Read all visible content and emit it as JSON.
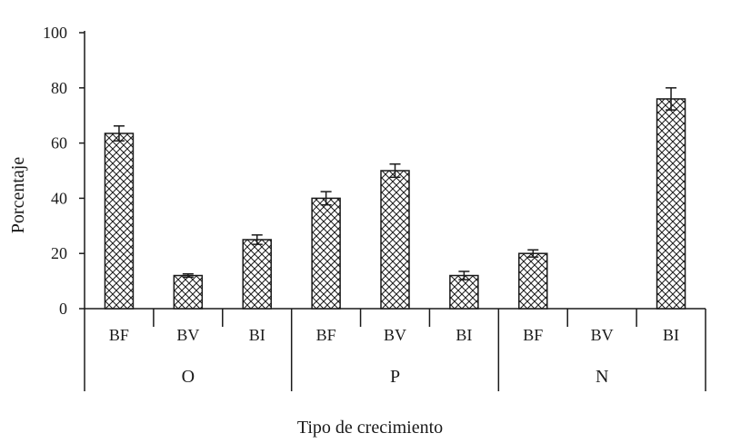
{
  "chart_data": {
    "type": "bar",
    "title": "",
    "xlabel": "Tipo de crecimiento",
    "ylabel": "Porcentaje",
    "ylim": [
      0,
      100
    ],
    "yticks": [
      0,
      20,
      40,
      60,
      80,
      100
    ],
    "grid": false,
    "bar_pattern": "crosshatch",
    "colors": {
      "bar_fill": "#ffffff",
      "bar_stroke": "#1a1a1a",
      "hatch": "#1a1a1a"
    },
    "groups": [
      {
        "label": "O",
        "categories": [
          "BF",
          "BV",
          "BI"
        ],
        "values": [
          63.5,
          12,
          25
        ],
        "errors": [
          2.7,
          0.6,
          1.7
        ]
      },
      {
        "label": "P",
        "categories": [
          "BF",
          "BV",
          "BI"
        ],
        "values": [
          40,
          50,
          12
        ],
        "errors": [
          2.4,
          2.4,
          1.5
        ]
      },
      {
        "label": "N",
        "categories": [
          "BF",
          "BV",
          "BI"
        ],
        "values": [
          20,
          0,
          76
        ],
        "errors": [
          1.3,
          0,
          4.0
        ]
      }
    ]
  }
}
